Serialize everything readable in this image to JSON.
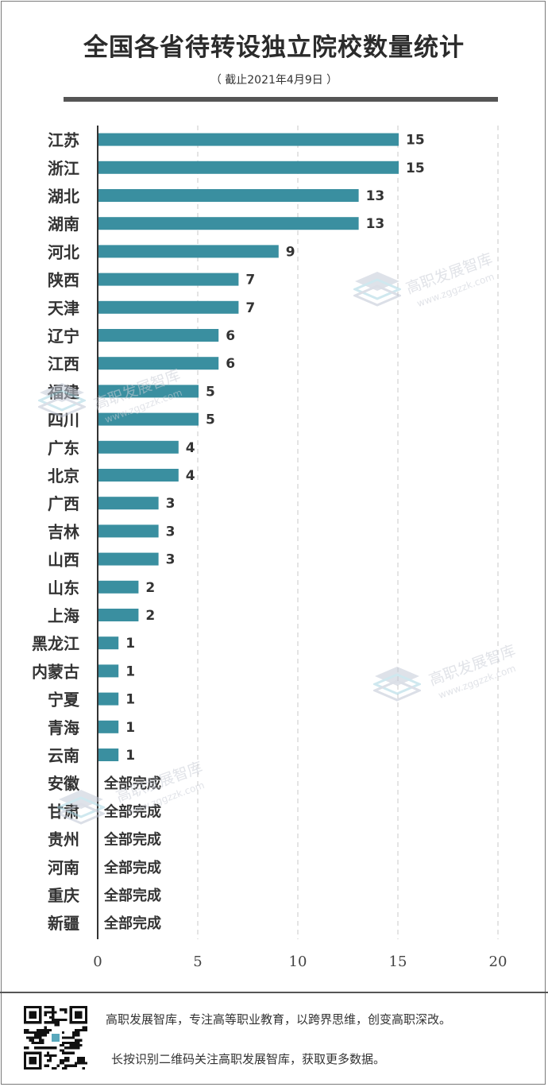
{
  "title": "全国各省待转设独立院校数量统计",
  "subtitle": "（ 截止2021年4月9日 ）",
  "chart_data": {
    "type": "bar",
    "orientation": "horizontal",
    "title": "全国各省待转设独立院校数量统计",
    "subtitle": "（ 截止2021年4月9日 ）",
    "categories": [
      "江苏",
      "浙江",
      "湖北",
      "湖南",
      "河北",
      "陕西",
      "天津",
      "辽宁",
      "江西",
      "福建",
      "四川",
      "广东",
      "北京",
      "广西",
      "吉林",
      "山西",
      "山东",
      "上海",
      "黑龙江",
      "内蒙古",
      "宁夏",
      "青海",
      "云南",
      "安徽",
      "甘肃",
      "贵州",
      "河南",
      "重庆",
      "新疆"
    ],
    "values": [
      15,
      15,
      13,
      13,
      9,
      7,
      7,
      6,
      6,
      5,
      5,
      4,
      4,
      3,
      3,
      3,
      2,
      2,
      1,
      1,
      1,
      1,
      1,
      0,
      0,
      0,
      0,
      0,
      0
    ],
    "labels": [
      "15",
      "15",
      "13",
      "13",
      "9",
      "7",
      "7",
      "6",
      "6",
      "5",
      "5",
      "4",
      "4",
      "3",
      "3",
      "3",
      "2",
      "2",
      "1",
      "1",
      "1",
      "1",
      "1",
      "全部完成",
      "全部完成",
      "全部完成",
      "全部完成",
      "全部完成",
      "全部完成"
    ],
    "xlim": [
      0,
      20
    ],
    "xticks": [
      "0",
      "5",
      "10",
      "15",
      "20"
    ],
    "grid": true,
    "bar_color": "#3a8fa0"
  },
  "watermark": {
    "brand": "高职发展智库",
    "url": "www.zggzzk.com"
  },
  "footer": {
    "line1": "高职发展智库，专注高等职业教育，以跨界思维，创变高职深改。",
    "line2": "长按识别二维码关注高职发展智库，获取更多数据。"
  },
  "icons": {
    "qr": "qr-code-icon",
    "logo": "stacked-layers-logo-icon"
  }
}
